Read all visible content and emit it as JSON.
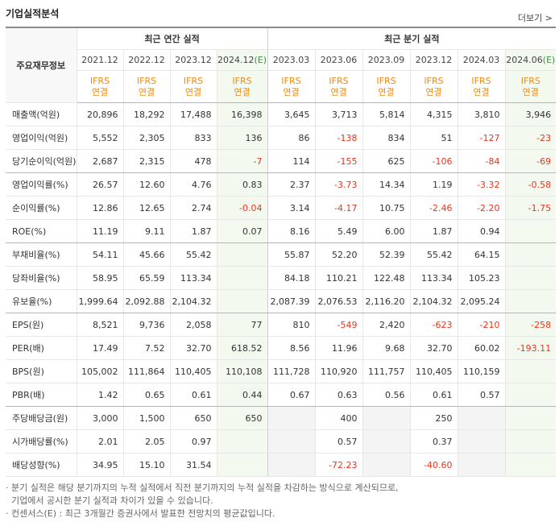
{
  "header": {
    "title": "기업실적분석",
    "more": "더보기"
  },
  "table": {
    "corner": "주요재무정보",
    "groups": [
      "최근 연간 실적",
      "최근 분기 실적"
    ],
    "columns": [
      {
        "period": "2021.12",
        "basis": "IFRS",
        "scope": "연결"
      },
      {
        "period": "2022.12",
        "basis": "IFRS",
        "scope": "연결"
      },
      {
        "period": "2023.12",
        "basis": "IFRS",
        "scope": "연결"
      },
      {
        "period": "2024.12",
        "estimate": "(E)",
        "basis": "IFRS",
        "scope": "연결"
      },
      {
        "period": "2023.03",
        "basis": "IFRS",
        "scope": "연결"
      },
      {
        "period": "2023.06",
        "basis": "IFRS",
        "scope": "연결"
      },
      {
        "period": "2023.09",
        "basis": "IFRS",
        "scope": "연결"
      },
      {
        "period": "2023.12",
        "basis": "IFRS",
        "scope": "연결"
      },
      {
        "period": "2024.03",
        "basis": "IFRS",
        "scope": "연결"
      },
      {
        "period": "2024.06",
        "estimate": "(E)",
        "basis": "IFRS",
        "scope": "연결"
      }
    ],
    "rows": [
      {
        "label": "매출액(억원)",
        "values": [
          "20,896",
          "18,292",
          "17,488",
          "16,398",
          "3,645",
          "3,713",
          "5,814",
          "4,315",
          "3,810",
          "3,946"
        ]
      },
      {
        "label": "영업이익(억원)",
        "values": [
          "5,552",
          "2,305",
          "833",
          "136",
          "86",
          "-138",
          "834",
          "51",
          "-127",
          "-23"
        ]
      },
      {
        "label": "당기순이익(억원)",
        "values": [
          "2,687",
          "2,315",
          "478",
          "-7",
          "114",
          "-155",
          "625",
          "-106",
          "-84",
          "-69"
        ]
      },
      {
        "label": "영업이익률(%)",
        "values": [
          "26.57",
          "12.60",
          "4.76",
          "0.83",
          "2.37",
          "-3.73",
          "14.34",
          "1.19",
          "-3.32",
          "-0.58"
        ]
      },
      {
        "label": "순이익률(%)",
        "values": [
          "12.86",
          "12.65",
          "2.74",
          "-0.04",
          "3.14",
          "-4.17",
          "10.75",
          "-2.46",
          "-2.20",
          "-1.75"
        ]
      },
      {
        "label": "ROE(%)",
        "values": [
          "11.19",
          "9.11",
          "1.87",
          "0.07",
          "8.16",
          "5.49",
          "6.00",
          "1.87",
          "0.94",
          null
        ]
      },
      {
        "label": "부채비율(%)",
        "values": [
          "54.11",
          "45.66",
          "55.42",
          null,
          "55.87",
          "52.20",
          "52.39",
          "55.42",
          "64.15",
          null
        ]
      },
      {
        "label": "당좌비율(%)",
        "values": [
          "58.95",
          "65.59",
          "113.34",
          null,
          "84.18",
          "110.21",
          "122.48",
          "113.34",
          "105.23",
          null
        ]
      },
      {
        "label": "유보율(%)",
        "values": [
          "1,999.64",
          "2,092.88",
          "2,104.32",
          null,
          "2,087.39",
          "2,076.53",
          "2,116.20",
          "2,104.32",
          "2,095.24",
          null
        ]
      },
      {
        "label": "EPS(원)",
        "values": [
          "8,521",
          "9,736",
          "2,058",
          "77",
          "810",
          "-549",
          "2,420",
          "-623",
          "-210",
          "-258"
        ]
      },
      {
        "label": "PER(배)",
        "values": [
          "17.49",
          "7.52",
          "32.70",
          "618.52",
          "8.56",
          "11.96",
          "9.68",
          "32.70",
          "60.02",
          "-193.11"
        ]
      },
      {
        "label": "BPS(원)",
        "values": [
          "105,002",
          "111,864",
          "110,405",
          "110,108",
          "111,728",
          "110,920",
          "111,757",
          "110,405",
          "110,159",
          null
        ]
      },
      {
        "label": "PBR(배)",
        "values": [
          "1.42",
          "0.65",
          "0.61",
          "0.44",
          "0.67",
          "0.63",
          "0.56",
          "0.61",
          "0.57",
          null
        ]
      },
      {
        "label": "주당배당금(원)",
        "values": [
          "3,000",
          "1,500",
          "650",
          "650",
          null,
          "400",
          null,
          "250",
          null,
          null
        ]
      },
      {
        "label": "시가배당률(%)",
        "values": [
          "2.01",
          "2.05",
          "0.97",
          null,
          null,
          "0.57",
          null,
          "0.37",
          null,
          null
        ]
      },
      {
        "label": "배당성향(%)",
        "values": [
          "34.95",
          "15.10",
          "31.54",
          null,
          null,
          "-72.23",
          null,
          "-40.60",
          null,
          null
        ]
      }
    ]
  },
  "notes": [
    "분기 실적은 해당 분기까지의 누적 실적에서 직전 분기까지의 누적 실적을 차감하는 방식으로 계산되므로,",
    "기업에서 공시한 분기 실적과 차이가 있을 수 있습니다.",
    "컨센서스(E) : 최근 3개월간 증권사에서 발표한 전망치의 평균값입니다."
  ]
}
